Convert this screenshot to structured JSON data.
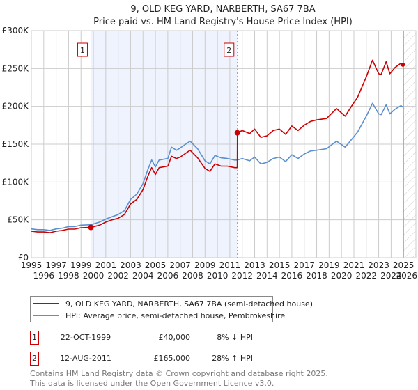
{
  "title": "9, OLD KEG YARD, NARBERTH, SA67 7BA",
  "subtitle": "Price paid vs. HM Land Registry's House Price Index (HPI)",
  "legend": {
    "property": "9, OLD KEG YARD, NARBERTH, SA67 7BA (semi-detached house)",
    "hpi": "HPI: Average price, semi-detached house, Pembrokeshire"
  },
  "sales": [
    {
      "num": "1",
      "date": "22-OCT-1999",
      "price": "£40,000",
      "delta": "8% ↓ HPI",
      "year": 1999.8,
      "value": 40
    },
    {
      "num": "2",
      "date": "12-AUG-2011",
      "price": "£165,000",
      "delta": "28% ↑ HPI",
      "year": 2011.61,
      "value": 165
    }
  ],
  "footer": {
    "line1": "Contains HM Land Registry data © Crown copyright and database right 2025.",
    "line2": "This data is licensed under the Open Government Licence v3.0."
  },
  "colors": {
    "property": "#cc0000",
    "hpi": "#5b8fd0",
    "shade": "#eef3fd",
    "grid": "#cccccc"
  },
  "chart_data": {
    "type": "line",
    "title": "9, OLD KEG YARD, NARBERTH, SA67 7BA — Price paid vs. HM Land Registry's House Price Index (HPI)",
    "xlabel": "",
    "ylabel": "",
    "xlim": [
      1995,
      2026
    ],
    "ylim": [
      0,
      300
    ],
    "y_unit": "£K",
    "y_ticks": [
      0,
      50,
      100,
      150,
      200,
      250,
      300
    ],
    "y_tick_labels": [
      "£0",
      "£50K",
      "£100K",
      "£150K",
      "£200K",
      "£250K",
      "£300K"
    ],
    "x_ticks": [
      "1995",
      "1996",
      "1997",
      "1998",
      "1999",
      "2000",
      "2001",
      "2002",
      "2003",
      "2004",
      "2005",
      "2006",
      "2007",
      "2008",
      "2009",
      "2010",
      "2011",
      "2012",
      "2013",
      "2014",
      "2015",
      "2016",
      "2017",
      "2018",
      "2019",
      "2020",
      "2021",
      "2022",
      "2023",
      "2024",
      "2025",
      "2026"
    ],
    "grid": true,
    "legend_position": "below",
    "shaded_range": [
      1999.8,
      2011.61
    ],
    "future_hatch_from": 2025.0,
    "series": [
      {
        "name": "HPI: Average price, semi-detached house, Pembrokeshire",
        "x": [
          1995.0,
          1995.5,
          1996.0,
          1996.5,
          1997.0,
          1997.5,
          1998.0,
          1998.5,
          1999.0,
          1999.8,
          2000.5,
          2001.0,
          2001.5,
          2002.0,
          2002.5,
          2003.0,
          2003.5,
          2004.0,
          2004.4,
          2004.7,
          2005.0,
          2005.3,
          2006.0,
          2006.3,
          2006.7,
          2007.0,
          2007.8,
          2008.4,
          2009.0,
          2009.4,
          2009.8,
          2010.3,
          2010.8,
          2011.4,
          2011.6,
          2012.0,
          2012.6,
          2013.0,
          2013.5,
          2014.0,
          2014.5,
          2015.0,
          2015.5,
          2016.0,
          2016.5,
          2017.0,
          2017.5,
          2018.0,
          2018.8,
          2019.6,
          2020.3,
          2020.8,
          2021.3,
          2022.0,
          2022.5,
          2023.0,
          2023.2,
          2023.6,
          2023.9,
          2024.3,
          2024.8,
          2024.95
        ],
        "values": [
          38,
          37,
          37,
          36,
          38,
          39,
          41,
          41,
          43,
          43.5,
          47,
          51,
          54,
          57,
          62,
          77,
          84,
          98,
          117,
          129,
          120,
          129,
          131,
          146,
          142,
          145,
          154,
          144,
          128,
          124,
          135,
          132,
          131,
          129,
          129,
          131,
          128,
          133,
          124,
          126,
          131,
          133,
          127,
          136,
          131,
          137,
          141,
          142,
          144,
          154,
          146,
          156,
          166,
          187,
          204,
          190,
          189,
          202,
          190,
          196,
          201,
          199
        ]
      },
      {
        "name": "9, OLD KEG YARD, NARBERTH, SA67 7BA (semi-detached house)",
        "x": [
          1995.0,
          1995.5,
          1996.0,
          1996.5,
          1997.0,
          1997.5,
          1998.0,
          1998.5,
          1999.0,
          1999.8,
          2000.5,
          2001.0,
          2001.5,
          2002.0,
          2002.5,
          2003.0,
          2003.5,
          2004.0,
          2004.4,
          2004.7,
          2005.0,
          2005.3,
          2006.0,
          2006.3,
          2006.7,
          2007.0,
          2007.8,
          2008.4,
          2009.0,
          2009.4,
          2009.8,
          2010.3,
          2010.8,
          2011.4,
          2011.6,
          2011.61,
          2012.0,
          2012.6,
          2013.0,
          2013.5,
          2014.0,
          2014.5,
          2015.0,
          2015.5,
          2016.0,
          2016.5,
          2017.0,
          2017.5,
          2018.0,
          2018.8,
          2019.6,
          2020.3,
          2020.8,
          2021.3,
          2022.0,
          2022.5,
          2023.0,
          2023.2,
          2023.6,
          2023.9,
          2024.3,
          2024.8,
          2024.95
        ],
        "values": [
          35,
          34,
          34,
          33,
          35,
          36,
          37.7,
          37.7,
          39.6,
          40,
          43,
          47,
          50,
          52,
          57,
          71,
          77,
          90,
          108,
          119,
          110,
          119,
          121,
          134,
          131,
          133,
          142,
          132,
          118,
          114,
          124,
          121,
          121,
          119,
          119,
          165,
          168,
          164,
          170,
          159,
          161,
          168,
          170,
          163,
          174,
          168,
          175,
          180,
          182,
          184,
          197,
          187,
          200,
          212,
          239,
          261,
          243,
          242,
          259,
          243,
          251,
          257,
          255
        ]
      }
    ]
  }
}
